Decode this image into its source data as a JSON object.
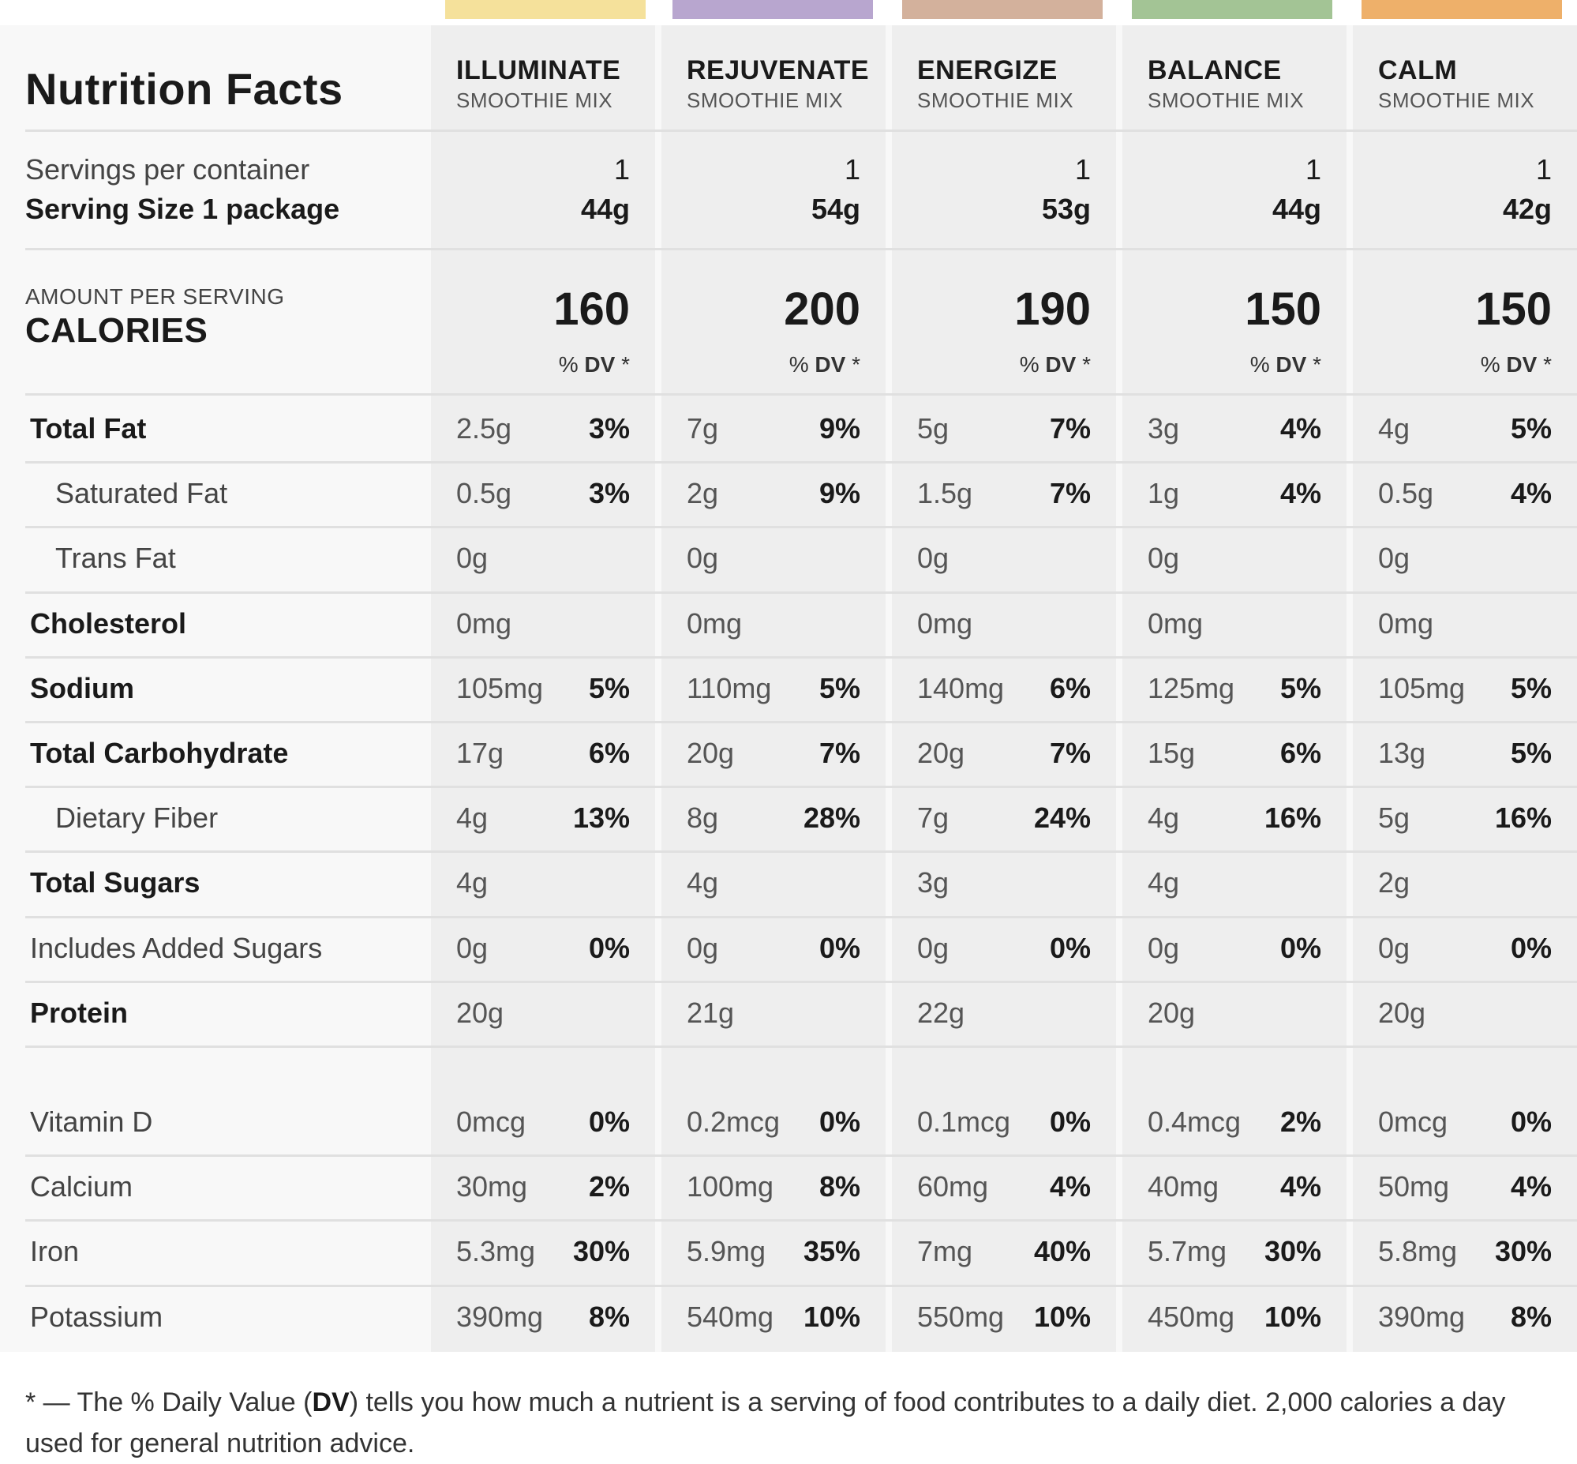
{
  "title": "Nutrition Facts",
  "products": [
    {
      "name": "ILLUMINATE",
      "sub": "SMOOTHIE MIX",
      "color": "#f5e19b",
      "servings": "1",
      "size": "44g",
      "calories": "160"
    },
    {
      "name": "REJUVENATE",
      "sub": "SMOOTHIE MIX",
      "color": "#b8a6cf",
      "servings": "1",
      "size": "54g",
      "calories": "200"
    },
    {
      "name": "ENERGIZE",
      "sub": "SMOOTHIE MIX",
      "color": "#d3b19c",
      "servings": "1",
      "size": "53g",
      "calories": "190"
    },
    {
      "name": "BALANCE",
      "sub": "SMOOTHIE MIX",
      "color": "#a3c495",
      "servings": "1",
      "size": "44g",
      "calories": "150"
    },
    {
      "name": "CALM",
      "sub": "SMOOTHIE MIX",
      "color": "#eeb06a",
      "servings": "1",
      "size": "42g",
      "calories": "150"
    }
  ],
  "servings_label": "Servings per container",
  "serving_size_label": "Serving Size 1 package",
  "amount_per_serving": "AMOUNT PER SERVING",
  "calories_label": "CALORIES",
  "dv_pct": "%",
  "dv_text": "DV",
  "dv_star": "*",
  "nutrients": [
    {
      "label": "Total Fat",
      "bold": true,
      "indent": false,
      "values": [
        [
          "2.5g",
          "3%"
        ],
        [
          "7g",
          "9%"
        ],
        [
          "5g",
          "7%"
        ],
        [
          "3g",
          "4%"
        ],
        [
          "4g",
          "5%"
        ]
      ]
    },
    {
      "label": "Saturated Fat",
      "bold": false,
      "indent": true,
      "values": [
        [
          "0.5g",
          "3%"
        ],
        [
          "2g",
          "9%"
        ],
        [
          "1.5g",
          "7%"
        ],
        [
          "1g",
          "4%"
        ],
        [
          "0.5g",
          "4%"
        ]
      ]
    },
    {
      "label": "Trans Fat",
      "bold": false,
      "indent": true,
      "values": [
        [
          "0g",
          ""
        ],
        [
          "0g",
          ""
        ],
        [
          "0g",
          ""
        ],
        [
          "0g",
          ""
        ],
        [
          "0g",
          ""
        ]
      ]
    },
    {
      "label": "Cholesterol",
      "bold": true,
      "indent": false,
      "values": [
        [
          "0mg",
          ""
        ],
        [
          "0mg",
          ""
        ],
        [
          "0mg",
          ""
        ],
        [
          "0mg",
          ""
        ],
        [
          "0mg",
          ""
        ]
      ]
    },
    {
      "label": "Sodium",
      "bold": true,
      "indent": false,
      "values": [
        [
          "105mg",
          "5%"
        ],
        [
          "110mg",
          "5%"
        ],
        [
          "140mg",
          "6%"
        ],
        [
          "125mg",
          "5%"
        ],
        [
          "105mg",
          "5%"
        ]
      ]
    },
    {
      "label": "Total Carbohydrate",
      "bold": true,
      "indent": false,
      "values": [
        [
          "17g",
          "6%"
        ],
        [
          "20g",
          "7%"
        ],
        [
          "20g",
          "7%"
        ],
        [
          "15g",
          "6%"
        ],
        [
          "13g",
          "5%"
        ]
      ]
    },
    {
      "label": "Dietary Fiber",
      "bold": false,
      "indent": true,
      "values": [
        [
          "4g",
          "13%"
        ],
        [
          "8g",
          "28%"
        ],
        [
          "7g",
          "24%"
        ],
        [
          "4g",
          "16%"
        ],
        [
          "5g",
          "16%"
        ]
      ]
    },
    {
      "label": "Total Sugars",
      "bold": true,
      "indent": false,
      "values": [
        [
          "4g",
          ""
        ],
        [
          "4g",
          ""
        ],
        [
          "3g",
          ""
        ],
        [
          "4g",
          ""
        ],
        [
          "2g",
          ""
        ]
      ]
    },
    {
      "label": "Includes Added Sugars",
      "bold": false,
      "indent": false,
      "values": [
        [
          "0g",
          "0%"
        ],
        [
          "0g",
          "0%"
        ],
        [
          "0g",
          "0%"
        ],
        [
          "0g",
          "0%"
        ],
        [
          "0g",
          "0%"
        ]
      ]
    },
    {
      "label": "Protein",
      "bold": true,
      "indent": false,
      "values": [
        [
          "20g",
          ""
        ],
        [
          "21g",
          ""
        ],
        [
          "22g",
          ""
        ],
        [
          "20g",
          ""
        ],
        [
          "20g",
          ""
        ]
      ]
    }
  ],
  "minerals": [
    {
      "label": "Vitamin D",
      "values": [
        [
          "0mcg",
          "0%"
        ],
        [
          "0.2mcg",
          "0%"
        ],
        [
          "0.1mcg",
          "0%"
        ],
        [
          "0.4mcg",
          "2%"
        ],
        [
          "0mcg",
          "0%"
        ]
      ]
    },
    {
      "label": "Calcium",
      "values": [
        [
          "30mg",
          "2%"
        ],
        [
          "100mg",
          "8%"
        ],
        [
          "60mg",
          "4%"
        ],
        [
          "40mg",
          "4%"
        ],
        [
          "50mg",
          "4%"
        ]
      ]
    },
    {
      "label": "Iron",
      "values": [
        [
          "5.3mg",
          "30%"
        ],
        [
          "5.9mg",
          "35%"
        ],
        [
          "7mg",
          "40%"
        ],
        [
          "5.7mg",
          "30%"
        ],
        [
          "5.8mg",
          "30%"
        ]
      ]
    },
    {
      "label": "Potassium",
      "values": [
        [
          "390mg",
          "8%"
        ],
        [
          "540mg",
          "10%"
        ],
        [
          "550mg",
          "10%"
        ],
        [
          "450mg",
          "10%"
        ],
        [
          "390mg",
          "8%"
        ]
      ]
    }
  ],
  "footnote": {
    "star": "* — The % Daily Value (",
    "dv": "DV",
    "rest": ") tells you how much a nutrient is a serving of food contributes to a daily diet. 2,000 calories a day used for general nutrition advice."
  }
}
